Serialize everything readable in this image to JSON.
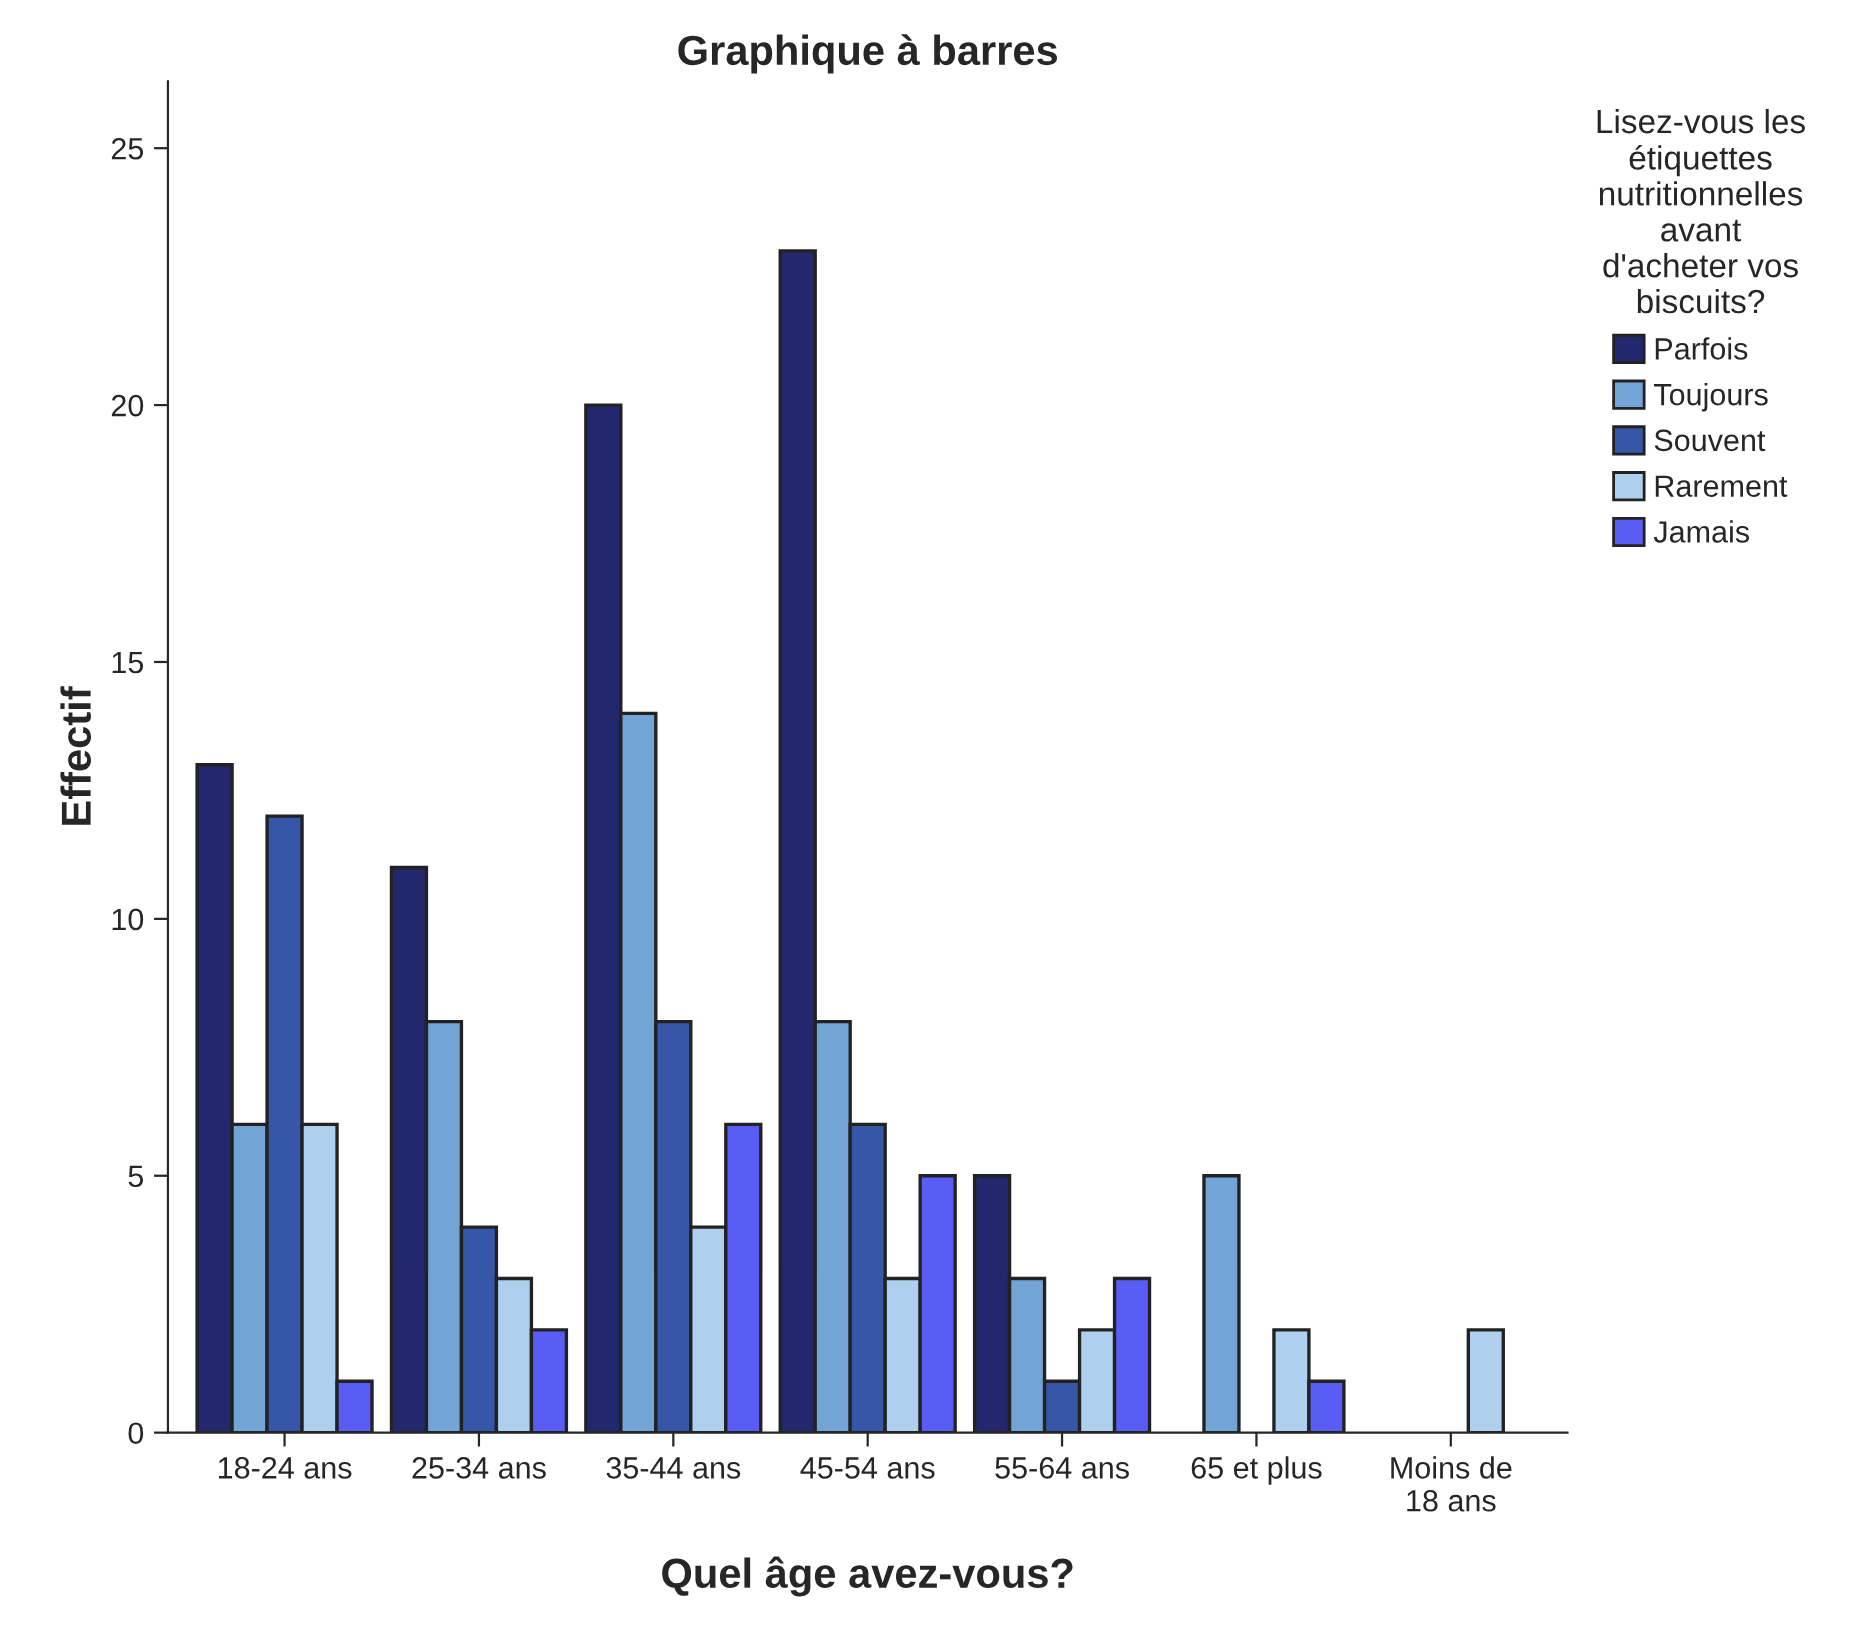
{
  "chart_data": {
    "type": "bar",
    "title": "Graphique à barres",
    "xlabel": "Quel âge avez-vous?",
    "ylabel": "Effectif",
    "legend_title": "Lisez-vous les\nétiquettes\nnutritionnelles\navant\nd'acheter vos\nbiscuits?",
    "categories": [
      "18-24 ans",
      "25-34 ans",
      "35-44 ans",
      "45-54 ans",
      "55-64 ans",
      "65 et plus",
      "Moins de\n18 ans"
    ],
    "series": [
      {
        "name": "Parfois",
        "color": "#23286e",
        "values": [
          13,
          11,
          20,
          23,
          5,
          null,
          null
        ]
      },
      {
        "name": "Toujours",
        "color": "#72a4d6",
        "values": [
          6,
          8,
          14,
          8,
          3,
          5,
          null
        ]
      },
      {
        "name": "Souvent",
        "color": "#3656a8",
        "values": [
          12,
          4,
          8,
          6,
          1,
          null,
          null
        ]
      },
      {
        "name": "Rarement",
        "color": "#aed0ee",
        "values": [
          6,
          3,
          4,
          3,
          2,
          2,
          2
        ]
      },
      {
        "name": "Jamais",
        "color": "#5a5cf6",
        "values": [
          1,
          2,
          6,
          5,
          3,
          1,
          null
        ]
      }
    ],
    "ylim": [
      0,
      26.3
    ],
    "yticks": [
      0,
      5,
      10,
      15,
      20,
      25
    ],
    "grid": false,
    "legend": "top right"
  }
}
